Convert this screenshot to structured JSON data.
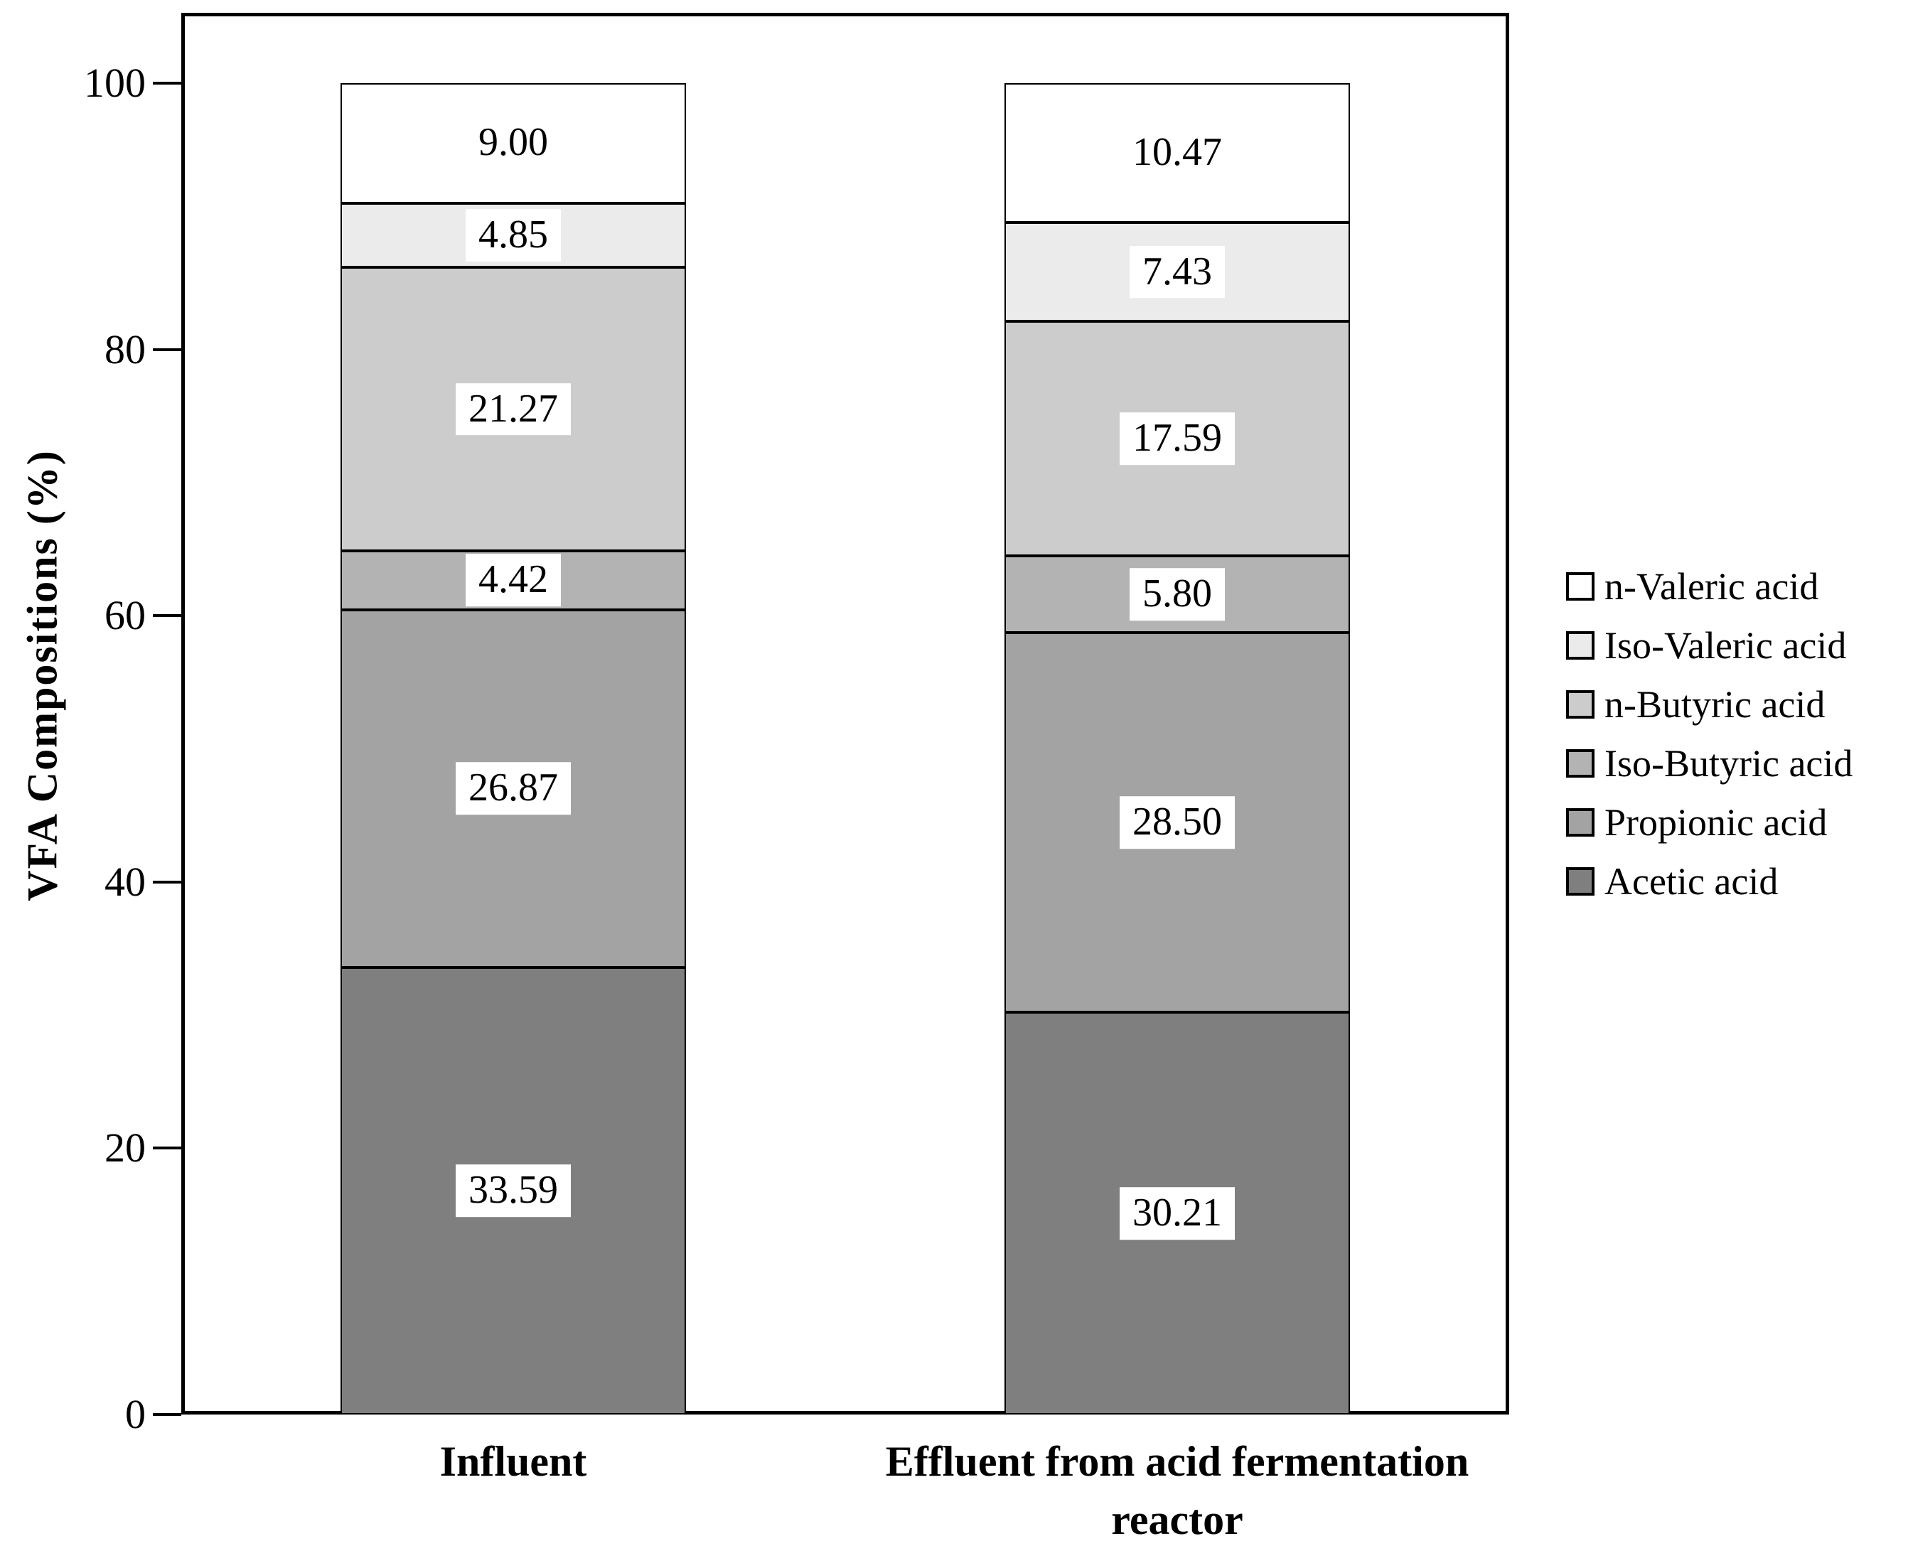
{
  "chart_data": {
    "type": "bar",
    "stacked": true,
    "title": "",
    "ylabel": "VFA Compositions (%)",
    "xlabel": "",
    "ylim": [
      0,
      100
    ],
    "yticks": [
      0,
      20,
      40,
      60,
      80,
      100
    ],
    "grid": false,
    "legend_position": "right",
    "categories": [
      "Influent",
      "Effluent from acid fermentation reactor"
    ],
    "series": [
      {
        "name": "Acetic acid",
        "color": "#7f7f7f",
        "values": [
          33.59,
          30.21
        ]
      },
      {
        "name": "Propionic acid",
        "color": "#a3a3a3",
        "values": [
          26.87,
          28.5
        ]
      },
      {
        "name": "Iso-Butyric acid",
        "color": "#b3b3b3",
        "values": [
          4.42,
          5.8
        ]
      },
      {
        "name": "n-Butyric acid",
        "color": "#cccccc",
        "values": [
          21.27,
          17.59
        ]
      },
      {
        "name": "Iso-Valeric acid",
        "color": "#ebebeb",
        "values": [
          4.85,
          7.43
        ]
      },
      {
        "name": "n-Valeric acid",
        "color": "#ffffff",
        "values": [
          9.0,
          10.47
        ]
      }
    ],
    "value_labels": [
      [
        "33.59",
        "26.87",
        "4.42",
        "21.27",
        "4.85",
        "9.00"
      ],
      [
        "30.21",
        "28.50",
        "5.80",
        "17.59",
        "7.43",
        "10.47"
      ]
    ],
    "legend": [
      "n-Valeric acid",
      "Iso-Valeric acid",
      "n-Butyric acid",
      "Iso-Butyric acid",
      "Propionic acid",
      "Acetic acid"
    ],
    "axis_color": "#000000",
    "label_box_color": "#ffffff"
  }
}
